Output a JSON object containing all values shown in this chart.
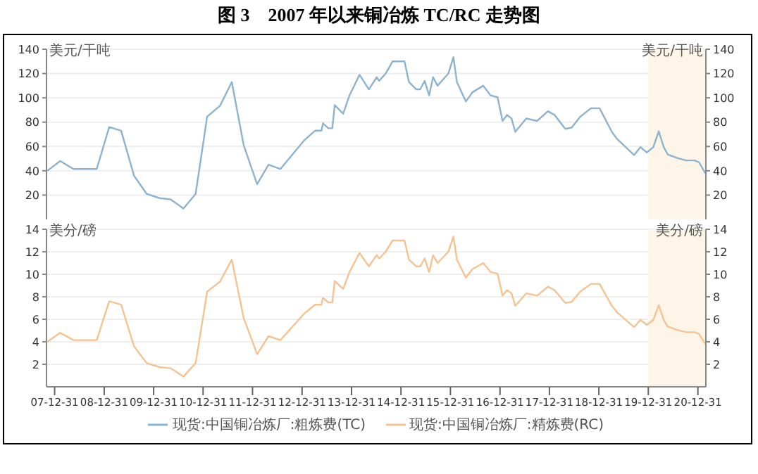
{
  "chart_data": [
    {
      "type": "line",
      "title": "图 3　2007 年以来铜冶炼 TC/RC 走势图",
      "ylabel": "美元/干吨",
      "y2label": "美元/干吨",
      "xlim": [
        "2007-11-01",
        "2021-02-28"
      ],
      "ylim": [
        0,
        140
      ],
      "yticks": [
        20,
        40,
        60,
        80,
        100,
        120,
        140
      ],
      "y2lim": [
        0,
        140
      ],
      "y2ticks": [
        20,
        40,
        60,
        80,
        100,
        120,
        140
      ],
      "tick_labels": "y",
      "grid": "y",
      "legend": "bottom",
      "line_style": "solid",
      "bands": [
        {
          "axis": "x",
          "from": "2019-12-31",
          "to": "2021-02-28",
          "color": "#fdf6e8"
        }
      ],
      "x": [
        "2007-11-07",
        "2008-02-10",
        "2008-05-18",
        "2008-11-06",
        "2009-02-06",
        "2009-05-05",
        "2009-08-08",
        "2009-11-10",
        "2010-02-14",
        "2010-05-05",
        "2010-08-08",
        "2010-11-06",
        "2011-01-30",
        "2011-05-05",
        "2011-07-31",
        "2011-10-27",
        "2012-02-03",
        "2012-04-27",
        "2012-07-24",
        "2013-01-15",
        "2013-04-06",
        "2013-05-23",
        "2013-06-03",
        "2013-07-13",
        "2013-08-11",
        "2013-08-29",
        "2013-10-30",
        "2013-12-16",
        "2014-02-28",
        "2014-05-08",
        "2014-07-05",
        "2014-07-23",
        "2014-09-09",
        "2014-10-30",
        "2015-01-26",
        "2015-02-28",
        "2015-04-23",
        "2015-05-22",
        "2015-06-24",
        "2015-07-27",
        "2015-08-25",
        "2015-09-27",
        "2015-12-16",
        "2016-01-22",
        "2016-02-17",
        "2016-04-23",
        "2016-06-10",
        "2016-08-29",
        "2016-10-23",
        "2016-12-13",
        "2017-01-19",
        "2017-02-21",
        "2017-03-26",
        "2017-04-23",
        "2017-07-13",
        "2017-10-01",
        "2017-12-20",
        "2018-02-06",
        "2018-04-27",
        "2018-06-13",
        "2018-08-15",
        "2018-11-03",
        "2019-01-05",
        "2019-04-06",
        "2019-05-12",
        "2019-07-17",
        "2019-09-17",
        "2019-11-03",
        "2019-12-20",
        "2020-02-06",
        "2020-03-17",
        "2020-04-23",
        "2020-05-22",
        "2020-07-31",
        "2020-10-04",
        "2020-12-06",
        "2021-01-08",
        "2021-02-24"
      ],
      "series": [
        {
          "name": "现货:中国铜冶炼厂:粗炼费(TC)",
          "color": "#8db3d1",
          "values": [
            40,
            48,
            41.5,
            41.5,
            76,
            73,
            36,
            21,
            17.5,
            16.5,
            9,
            21,
            84.5,
            93.5,
            113,
            61,
            29,
            45,
            41.5,
            65,
            73,
            73,
            79,
            75,
            75,
            94,
            87,
            102,
            119,
            107,
            117,
            114,
            120,
            130,
            130,
            113,
            107,
            107,
            114,
            102,
            117,
            110,
            120,
            133.5,
            113,
            97,
            104.5,
            110,
            102,
            100.5,
            81,
            86,
            83,
            72,
            83,
            81,
            89,
            86,
            74.5,
            75.5,
            84.5,
            91.5,
            91.5,
            72,
            66.5,
            59.5,
            53,
            59.5,
            55,
            59.5,
            72.5,
            59.5,
            53.5,
            50.5,
            48.5,
            48.5,
            47,
            38
          ]
        }
      ]
    },
    {
      "type": "line",
      "ylabel": "美分/磅",
      "y2label": "美分/磅",
      "xlim": [
        "2007-11-01",
        "2021-02-28"
      ],
      "ylim": [
        0,
        14
      ],
      "yticks": [
        2,
        4,
        6,
        8,
        10,
        12,
        14
      ],
      "y2lim": [
        0,
        14
      ],
      "y2ticks": [
        2,
        4,
        6,
        8,
        10,
        12,
        14
      ],
      "grid": "y",
      "legend": "bottom",
      "line_style": "solid",
      "xticks": [
        {
          "value": "2007-12-31",
          "label": "07-12-31"
        },
        {
          "value": "2008-12-31",
          "label": "08-12-31"
        },
        {
          "value": "2009-12-31",
          "label": "09-12-31"
        },
        {
          "value": "2010-12-31",
          "label": "10-12-31"
        },
        {
          "value": "2011-12-31",
          "label": "11-12-31"
        },
        {
          "value": "2012-12-31",
          "label": "12-12-31"
        },
        {
          "value": "2013-12-31",
          "label": "13-12-31"
        },
        {
          "value": "2014-12-31",
          "label": "14-12-31"
        },
        {
          "value": "2015-12-31",
          "label": "15-12-31"
        },
        {
          "value": "2016-12-31",
          "label": "16-12-31"
        },
        {
          "value": "2017-12-31",
          "label": "17-12-31"
        },
        {
          "value": "2018-12-31",
          "label": "18-12-31"
        },
        {
          "value": "2019-12-31",
          "label": "19-12-31"
        },
        {
          "value": "2020-12-31",
          "label": "20-12-31"
        }
      ],
      "bands": [
        {
          "axis": "x",
          "from": "2019-12-31",
          "to": "2021-02-28",
          "color": "#fdf6e8"
        }
      ],
      "x": [
        "2007-11-07",
        "2008-02-10",
        "2008-05-18",
        "2008-11-06",
        "2009-02-06",
        "2009-05-05",
        "2009-08-08",
        "2009-11-10",
        "2010-02-14",
        "2010-05-05",
        "2010-08-08",
        "2010-11-06",
        "2011-01-30",
        "2011-05-05",
        "2011-07-31",
        "2011-10-27",
        "2012-02-03",
        "2012-04-27",
        "2012-07-24",
        "2013-01-15",
        "2013-04-06",
        "2013-05-23",
        "2013-06-03",
        "2013-07-13",
        "2013-08-11",
        "2013-08-29",
        "2013-10-30",
        "2013-12-16",
        "2014-02-28",
        "2014-05-08",
        "2014-07-05",
        "2014-07-23",
        "2014-09-09",
        "2014-10-30",
        "2015-01-26",
        "2015-02-28",
        "2015-04-23",
        "2015-05-22",
        "2015-06-24",
        "2015-07-27",
        "2015-08-25",
        "2015-09-27",
        "2015-12-16",
        "2016-01-22",
        "2016-02-17",
        "2016-04-23",
        "2016-06-10",
        "2016-08-29",
        "2016-10-23",
        "2016-12-13",
        "2017-01-19",
        "2017-02-21",
        "2017-03-26",
        "2017-04-23",
        "2017-07-13",
        "2017-10-01",
        "2017-12-20",
        "2018-02-06",
        "2018-04-27",
        "2018-06-13",
        "2018-08-15",
        "2018-11-03",
        "2019-01-05",
        "2019-04-06",
        "2019-05-12",
        "2019-07-17",
        "2019-09-17",
        "2019-11-03",
        "2019-12-20",
        "2020-02-06",
        "2020-03-17",
        "2020-04-23",
        "2020-05-22",
        "2020-07-31",
        "2020-10-04",
        "2020-12-06",
        "2021-01-08",
        "2021-02-24"
      ],
      "series": [
        {
          "name": "现货:中国铜冶炼厂:精炼费(RC)",
          "color": "#f5c391",
          "values": [
            4,
            4.8,
            4.15,
            4.15,
            7.6,
            7.3,
            3.6,
            2.1,
            1.75,
            1.65,
            0.9,
            2.1,
            8.45,
            9.35,
            11.3,
            6.1,
            2.9,
            4.5,
            4.15,
            6.5,
            7.3,
            7.3,
            7.9,
            7.5,
            7.5,
            9.4,
            8.7,
            10.2,
            11.9,
            10.7,
            11.7,
            11.4,
            12,
            13,
            13,
            11.3,
            10.7,
            10.7,
            11.4,
            10.2,
            11.7,
            11,
            12,
            13.35,
            11.3,
            9.7,
            10.45,
            11,
            10.2,
            10.05,
            8.1,
            8.6,
            8.3,
            7.2,
            8.3,
            8.1,
            8.9,
            8.6,
            7.45,
            7.55,
            8.45,
            9.15,
            9.15,
            7.2,
            6.65,
            5.95,
            5.3,
            5.95,
            5.5,
            5.95,
            7.25,
            5.95,
            5.35,
            5.05,
            4.85,
            4.85,
            4.7,
            3.8
          ]
        }
      ]
    }
  ]
}
